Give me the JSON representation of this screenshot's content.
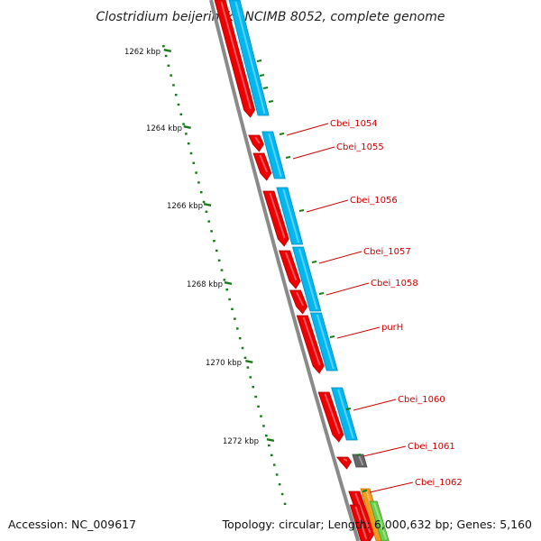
{
  "title": "Clostridium beijerinckii NCIMB 8052, complete genome",
  "accession": "Accession: NC_009617",
  "topology": "Topology: circular; Length: 6,000,632 bp; Genes: 5,160",
  "scale_labels": [
    "1262 kbp",
    "1264 kbp",
    "1266 kbp",
    "1268 kbp",
    "1270 kbp",
    "1272 kbp"
  ],
  "gene_labels": [
    "Cbei_1054",
    "Cbei_1055",
    "Cbei_1056",
    "Cbei_1057",
    "Cbei_1058",
    "purH",
    "Cbei_1060",
    "Cbei_1061",
    "Cbei_1062"
  ],
  "colors": {
    "cds": "#ee0000",
    "cds_dark": "#b00000",
    "gene": "#00b8f0",
    "gene_dark": "#0088c0",
    "backbone": "#8a8a8a",
    "tick": "#1a7a1a",
    "label": "#cc0000",
    "pseudo": "#666666",
    "orange": "#f39a1a",
    "green": "#6bd14a"
  }
}
